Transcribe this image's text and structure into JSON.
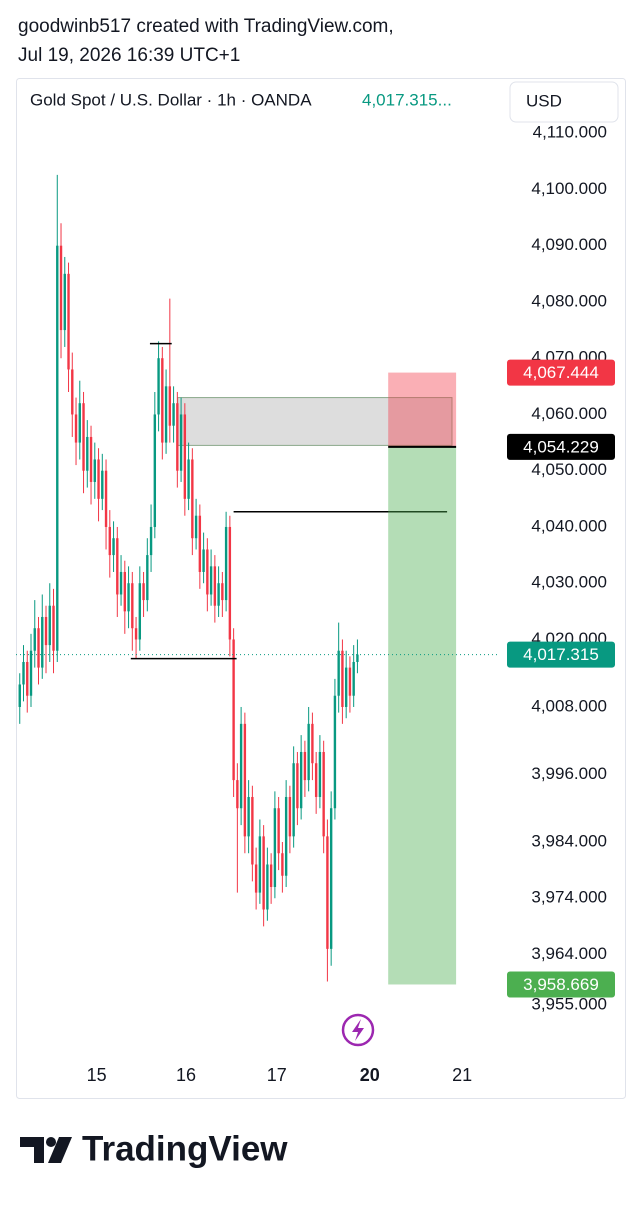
{
  "header": {
    "line1": "goodwinb517 created with TradingView.com,",
    "line2": "Jul 19, 2026 16:39 UTC+1"
  },
  "chart_data": {
    "type": "candlestick",
    "legend": "Gold Spot / U.S. Dollar · 1h · OANDA",
    "legend_price": {
      "value": 4017.315,
      "label": "4,017.315..."
    },
    "currency": "USD",
    "up_color": "#089981",
    "down_color": "#f23645",
    "ylim": [
      3948.8,
      4115.9
    ],
    "yticks": [
      {
        "value": 4110,
        "label": "4,110.000"
      },
      {
        "value": 4100,
        "label": "4,100.000"
      },
      {
        "value": 4090,
        "label": "4,090.000"
      },
      {
        "value": 4080,
        "label": "4,080.000"
      },
      {
        "value": 4070,
        "label": "4,070.000"
      },
      {
        "value": 4060,
        "label": "4,060.000"
      },
      {
        "value": 4050,
        "label": "4,050.000"
      },
      {
        "value": 4040,
        "label": "4,040.000"
      },
      {
        "value": 4030,
        "label": "4,030.000"
      },
      {
        "value": 4020,
        "label": "4,020.000"
      },
      {
        "value": 4008,
        "label": "4,008.000"
      },
      {
        "value": 3996,
        "label": "3,996.000"
      },
      {
        "value": 3984,
        "label": "3,984.000"
      },
      {
        "value": 3974,
        "label": "3,974.000"
      },
      {
        "value": 3964,
        "label": "3,964.000"
      },
      {
        "value": 3955,
        "label": "3,955.000"
      }
    ],
    "xlim": [
      -1,
      128
    ],
    "xticks": [
      {
        "value": 20.5,
        "label": "15"
      },
      {
        "value": 44.3,
        "label": "16"
      },
      {
        "value": 68.5,
        "label": "17"
      },
      {
        "value": 93.3,
        "label": "20"
      },
      {
        "value": 117.9,
        "label": "21"
      }
    ],
    "ohlc": [
      [
        4008,
        4014,
        4005,
        4012
      ],
      [
        4012,
        4019,
        4009,
        4016
      ],
      [
        4016,
        4018,
        4007,
        4010
      ],
      [
        4010,
        4021,
        4008,
        4018
      ],
      [
        4018,
        4027,
        4015,
        4022
      ],
      [
        4022,
        4024,
        4012,
        4015
      ],
      [
        4015,
        4028,
        4013,
        4024
      ],
      [
        4024,
        4026,
        4014,
        4019
      ],
      [
        4019,
        4030,
        4016,
        4026
      ],
      [
        4026,
        4029,
        4014,
        4018
      ],
      [
        4018,
        4102.6,
        4016,
        4090
      ],
      [
        4090,
        4094,
        4070,
        4075
      ],
      [
        4075,
        4088,
        4072,
        4085
      ],
      [
        4085,
        4087,
        4064,
        4068
      ],
      [
        4068,
        4071,
        4056,
        4060
      ],
      [
        4060,
        4063,
        4051,
        4055
      ],
      [
        4055,
        4066,
        4052,
        4062
      ],
      [
        4062,
        4064,
        4046,
        4050
      ],
      [
        4050,
        4059,
        4047,
        4056
      ],
      [
        4056,
        4058,
        4044,
        4048
      ],
      [
        4048,
        4055,
        4045,
        4052
      ],
      [
        4052,
        4054,
        4041,
        4045
      ],
      [
        4045,
        4053,
        4043,
        4050
      ],
      [
        4050,
        4052,
        4036,
        4040
      ],
      [
        4040,
        4043,
        4031,
        4035
      ],
      [
        4035,
        4041,
        4032,
        4038
      ],
      [
        4038,
        4040,
        4024,
        4028
      ],
      [
        4028,
        4035,
        4026,
        4032
      ],
      [
        4032,
        4034,
        4021,
        4025
      ],
      [
        4025,
        4033,
        4022,
        4030
      ],
      [
        4030,
        4032,
        4018,
        4022
      ],
      [
        4022,
        4024,
        4016.6,
        4020
      ],
      [
        4020,
        4033,
        4018,
        4030
      ],
      [
        4030,
        4032,
        4024,
        4027
      ],
      [
        4027,
        4038,
        4025,
        4035
      ],
      [
        4035,
        4044,
        4032,
        4040
      ],
      [
        4040,
        4064,
        4038,
        4060
      ],
      [
        4060,
        4073,
        4057,
        4070
      ],
      [
        4070,
        4072,
        4052,
        4055
      ],
      [
        4055,
        4068,
        4053,
        4065
      ],
      [
        4065,
        4080.6,
        4055,
        4058
      ],
      [
        4058,
        4065,
        4055,
        4062
      ],
      [
        4062,
        4064,
        4047,
        4050
      ],
      [
        4050,
        4063,
        4048,
        4060
      ],
      [
        4060,
        4062,
        4042,
        4045
      ],
      [
        4045,
        4055,
        4043,
        4052
      ],
      [
        4052,
        4054,
        4035,
        4038
      ],
      [
        4038,
        4045,
        4036,
        4042
      ],
      [
        4042,
        4044,
        4029,
        4032
      ],
      [
        4032,
        4039,
        4030,
        4036
      ],
      [
        4036,
        4038,
        4025,
        4028
      ],
      [
        4028,
        4036,
        4026,
        4033
      ],
      [
        4033,
        4035,
        4023,
        4026
      ],
      [
        4026,
        4033,
        4024,
        4030
      ],
      [
        4030,
        4032,
        4024,
        4027
      ],
      [
        4027,
        4042.7,
        4025,
        4040
      ],
      [
        4040,
        4042,
        4017,
        4020
      ],
      [
        4020,
        4022,
        3992,
        3995
      ],
      [
        3995,
        3998,
        3975,
        3990
      ],
      [
        3990,
        4008,
        3987,
        4005
      ],
      [
        4005,
        4007,
        3982,
        3985
      ],
      [
        3985,
        3995,
        3982,
        3992
      ],
      [
        3992,
        3994,
        3977,
        3980
      ],
      [
        3980,
        3983,
        3972,
        3975
      ],
      [
        3975,
        3988,
        3973,
        3985
      ],
      [
        3985,
        3987,
        3969,
        3972
      ],
      [
        3972,
        3983,
        3970,
        3980
      ],
      [
        3980,
        3982,
        3973,
        3976
      ],
      [
        3976,
        3993,
        3974,
        3990
      ],
      [
        3990,
        3992,
        3979,
        3982
      ],
      [
        3982,
        3984,
        3975,
        3978
      ],
      [
        3978,
        3995,
        3976,
        3992
      ],
      [
        3992,
        3994,
        3982,
        3985
      ],
      [
        3985,
        4001,
        3983,
        3998
      ],
      [
        3998,
        4000,
        3987,
        3990
      ],
      [
        3990,
        4003,
        3988,
        4000
      ],
      [
        4000,
        4002,
        3992,
        3995
      ],
      [
        3995,
        4008,
        3993,
        4005
      ],
      [
        4005,
        4007,
        3995,
        3998
      ],
      [
        3998,
        4000,
        3989,
        3992
      ],
      [
        3992,
        4003,
        3990,
        4000
      ],
      [
        4000,
        4002,
        3982,
        3985
      ],
      [
        3985,
        3988,
        3959.2,
        3965
      ],
      [
        3965,
        3993,
        3962,
        3990
      ],
      [
        3990,
        4013,
        3988,
        4010
      ],
      [
        4010,
        4023,
        4007,
        4018
      ],
      [
        4018,
        4020,
        4005,
        4008
      ],
      [
        4008,
        4018,
        4006,
        4015
      ],
      [
        4015,
        4017,
        4007,
        4010
      ],
      [
        4010,
        4019,
        4008,
        4016
      ],
      [
        4016,
        4020,
        4014,
        4017.315
      ]
    ],
    "price_labels": [
      {
        "value": 4067.444,
        "label": "4,067.444",
        "color": "#f23645"
      },
      {
        "value": 4054.229,
        "label": "4,054.229",
        "color": "#000000"
      },
      {
        "value": 4017.315,
        "label": "4,017.315",
        "color": "#089981"
      },
      {
        "value": 3958.669,
        "label": "3,958.669",
        "color": "#4caf50"
      }
    ],
    "levels": [
      {
        "value": 4072.6,
        "x": [
          34.7,
          40.5
        ]
      },
      {
        "value": 4042.7,
        "x": [
          57,
          113.9
        ]
      },
      {
        "value": 4016.6,
        "x": [
          29.6,
          57.8
        ]
      }
    ],
    "zones": [
      {
        "top": 4063,
        "bottom": 4054.5,
        "x": [
          42.1,
          115.2
        ]
      }
    ],
    "position_tool": {
      "x": [
        98.2,
        116.3
      ]
    }
  },
  "footer": {
    "brand": "TradingView"
  }
}
